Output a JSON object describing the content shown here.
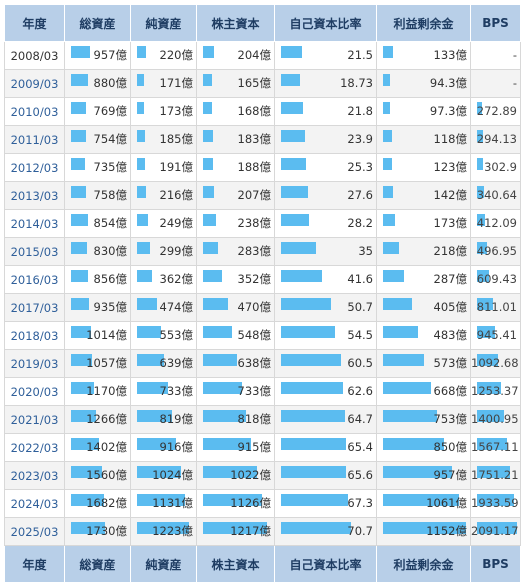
{
  "headers": [
    "年度",
    "総資産",
    "純資産",
    "株主資本",
    "自己資本比率",
    "利益剰余金",
    "BPS"
  ],
  "colors": {
    "header_bg": "#b8cfe8",
    "header_text": "#1f3d63",
    "bar": "#5bbcf0",
    "link": "#2f5f9a"
  },
  "rows": [
    {
      "year": "2008/03",
      "total_assets": "957億",
      "net_assets": "220億",
      "equity": "204億",
      "ratio": "21.5",
      "retained": "133億",
      "bps": "-"
    },
    {
      "year": "2009/03",
      "total_assets": "880億",
      "net_assets": "171億",
      "equity": "165億",
      "ratio": "18.73",
      "retained": "94.3億",
      "bps": "-"
    },
    {
      "year": "2010/03",
      "total_assets": "769億",
      "net_assets": "173億",
      "equity": "168億",
      "ratio": "21.8",
      "retained": "97.3億",
      "bps": "272.89"
    },
    {
      "year": "2011/03",
      "total_assets": "754億",
      "net_assets": "185億",
      "equity": "183億",
      "ratio": "23.9",
      "retained": "118億",
      "bps": "294.13"
    },
    {
      "year": "2012/03",
      "total_assets": "735億",
      "net_assets": "191億",
      "equity": "188億",
      "ratio": "25.3",
      "retained": "123億",
      "bps": "302.9"
    },
    {
      "year": "2013/03",
      "total_assets": "758億",
      "net_assets": "216億",
      "equity": "207億",
      "ratio": "27.6",
      "retained": "142億",
      "bps": "340.64"
    },
    {
      "year": "2014/03",
      "total_assets": "854億",
      "net_assets": "249億",
      "equity": "238億",
      "ratio": "28.2",
      "retained": "173億",
      "bps": "412.09"
    },
    {
      "year": "2015/03",
      "total_assets": "830億",
      "net_assets": "299億",
      "equity": "283億",
      "ratio": "35",
      "retained": "218億",
      "bps": "496.95"
    },
    {
      "year": "2016/03",
      "total_assets": "856億",
      "net_assets": "362億",
      "equity": "352億",
      "ratio": "41.6",
      "retained": "287億",
      "bps": "609.43"
    },
    {
      "year": "2017/03",
      "total_assets": "935億",
      "net_assets": "474億",
      "equity": "470億",
      "ratio": "50.7",
      "retained": "405億",
      "bps": "811.01"
    },
    {
      "year": "2018/03",
      "total_assets": "1014億",
      "net_assets": "553億",
      "equity": "548億",
      "ratio": "54.5",
      "retained": "483億",
      "bps": "945.41"
    },
    {
      "year": "2019/03",
      "total_assets": "1057億",
      "net_assets": "639億",
      "equity": "638億",
      "ratio": "60.5",
      "retained": "573億",
      "bps": "1092.68"
    },
    {
      "year": "2020/03",
      "total_assets": "1170億",
      "net_assets": "733億",
      "equity": "733億",
      "ratio": "62.6",
      "retained": "668億",
      "bps": "1253.37"
    },
    {
      "year": "2021/03",
      "total_assets": "1266億",
      "net_assets": "819億",
      "equity": "818億",
      "ratio": "64.7",
      "retained": "753億",
      "bps": "1400.95"
    },
    {
      "year": "2022/03",
      "total_assets": "1402億",
      "net_assets": "916億",
      "equity": "915億",
      "ratio": "65.4",
      "retained": "850億",
      "bps": "1567.11"
    },
    {
      "year": "2023/03",
      "total_assets": "1560億",
      "net_assets": "1024億",
      "equity": "1022億",
      "ratio": "65.6",
      "retained": "957億",
      "bps": "1751.21"
    },
    {
      "year": "2024/03",
      "total_assets": "1682億",
      "net_assets": "1131億",
      "equity": "1126億",
      "ratio": "67.3",
      "retained": "1061億",
      "bps": "1933.59"
    },
    {
      "year": "2025/03",
      "total_assets": "1730億",
      "net_assets": "1223億",
      "equity": "1217億",
      "ratio": "70.7",
      "retained": "1152億",
      "bps": "2091.17"
    }
  ]
}
